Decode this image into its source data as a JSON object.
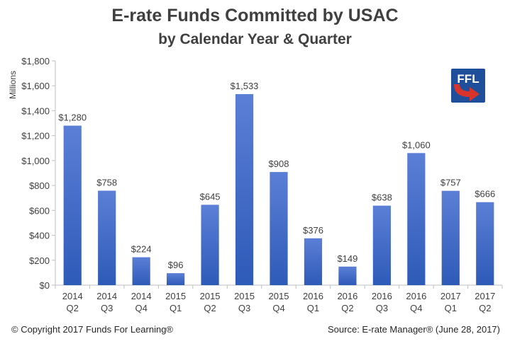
{
  "chart_data": {
    "type": "bar",
    "title": "E-rate Funds Committed by USAC",
    "subtitle": "by Calendar Year & Quarter",
    "ylabel": "Millions",
    "xlabel": "",
    "categories": [
      [
        "2014",
        "Q2"
      ],
      [
        "2014",
        "Q3"
      ],
      [
        "2014",
        "Q4"
      ],
      [
        "2015",
        "Q1"
      ],
      [
        "2015",
        "Q2"
      ],
      [
        "2015",
        "Q3"
      ],
      [
        "2015",
        "Q4"
      ],
      [
        "2016",
        "Q1"
      ],
      [
        "2016",
        "Q2"
      ],
      [
        "2016",
        "Q3"
      ],
      [
        "2016",
        "Q4"
      ],
      [
        "2017",
        "Q1"
      ],
      [
        "2017",
        "Q2"
      ]
    ],
    "values": [
      1280,
      758,
      224,
      96,
      645,
      1533,
      908,
      376,
      149,
      638,
      1060,
      757,
      666
    ],
    "data_labels": [
      "$1,280",
      "$758",
      "$224",
      "$96",
      "$645",
      "$1,533",
      "$908",
      "$376",
      "$149",
      "$638",
      "$1,060",
      "$757",
      "$666"
    ],
    "ylim": [
      0,
      1800
    ],
    "yticks": [
      "$0",
      "$200",
      "$400",
      "$600",
      "$800",
      "$1,000",
      "$1,200",
      "$1,400",
      "$1,600",
      "$1,800"
    ],
    "grid": false,
    "legend": "none",
    "bar_color_top": "#5B7FD6",
    "bar_color_bottom": "#2E5AB8"
  },
  "logo": {
    "text": "FFL",
    "bg": "#1F4E9A",
    "arrow": "#D9342B"
  },
  "footer": {
    "copyright": "© Copyright 2017 Funds For Learning®",
    "source": "Source: E-rate Manager® (June 28, 2017)"
  }
}
